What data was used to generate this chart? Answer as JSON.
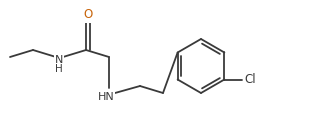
{
  "background_color": "#ffffff",
  "bond_color": "#3a3a3a",
  "atom_colors": {
    "O": "#c8640a",
    "N": "#3a3a3a",
    "Cl": "#3a3a3a",
    "NH": "#3a3a3a"
  },
  "figure_width": 3.26,
  "figure_height": 1.32,
  "dpi": 100,
  "lw": 1.3
}
